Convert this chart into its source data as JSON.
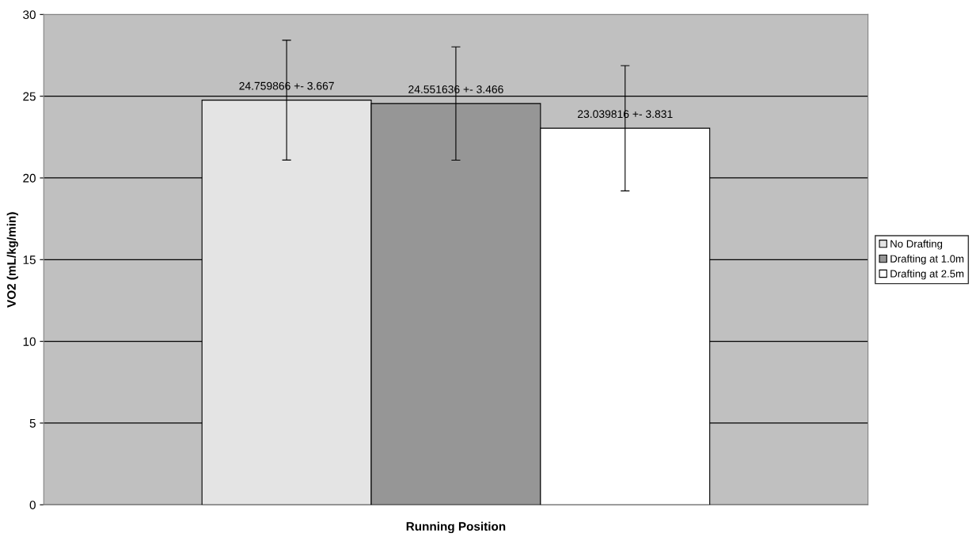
{
  "chart_data": {
    "type": "bar",
    "xlabel": "Running Position",
    "ylabel": "VO2 (mL/kg/min)",
    "categories": [
      null
    ],
    "series": [
      {
        "name": "No Drafting",
        "color": "#e4e4e4",
        "values": [
          24.759866
        ],
        "errors": [
          3.667
        ],
        "value_labels": [
          "24.759866 +- 3.667"
        ]
      },
      {
        "name": "Drafting at 1.0m",
        "color": "#969696",
        "values": [
          24.551636
        ],
        "errors": [
          3.466
        ],
        "value_labels": [
          "24.551636 +- 3.466"
        ]
      },
      {
        "name": "Drafting at 2.5m",
        "color": "#ffffff",
        "values": [
          23.039816
        ],
        "errors": [
          3.831
        ],
        "value_labels": [
          "23.039816 +- 3.831"
        ]
      }
    ],
    "ylim": [
      0,
      30
    ],
    "yticks": [
      0,
      5,
      10,
      15,
      20,
      25,
      30
    ],
    "grid": "y",
    "legend": "right"
  }
}
